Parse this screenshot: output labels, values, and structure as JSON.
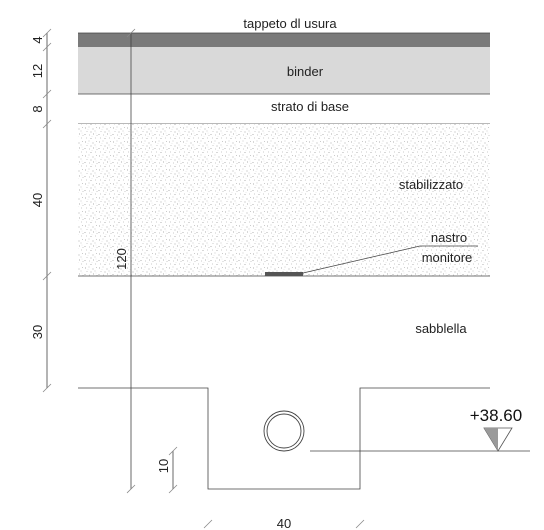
{
  "layers": {
    "tappeto": "tappeto dl usura",
    "binder": "binder",
    "base": "strato di base",
    "stabilizzato": "stabilizzato",
    "nastro_1": "nastro",
    "nastro_2": "monitore",
    "sabbiella": "sabblella"
  },
  "dimensions": {
    "d4": "4",
    "d12": "12",
    "d8": "8",
    "d40": "40",
    "d30": "30",
    "d120": "120",
    "d10": "10",
    "bottom_width": "40"
  },
  "elevation": "+38.60",
  "colors": {
    "wearing_course": "#7a7a7a",
    "binder": "#d9d9d9",
    "speckle": "#9a9a9a",
    "outline": "#444444"
  }
}
